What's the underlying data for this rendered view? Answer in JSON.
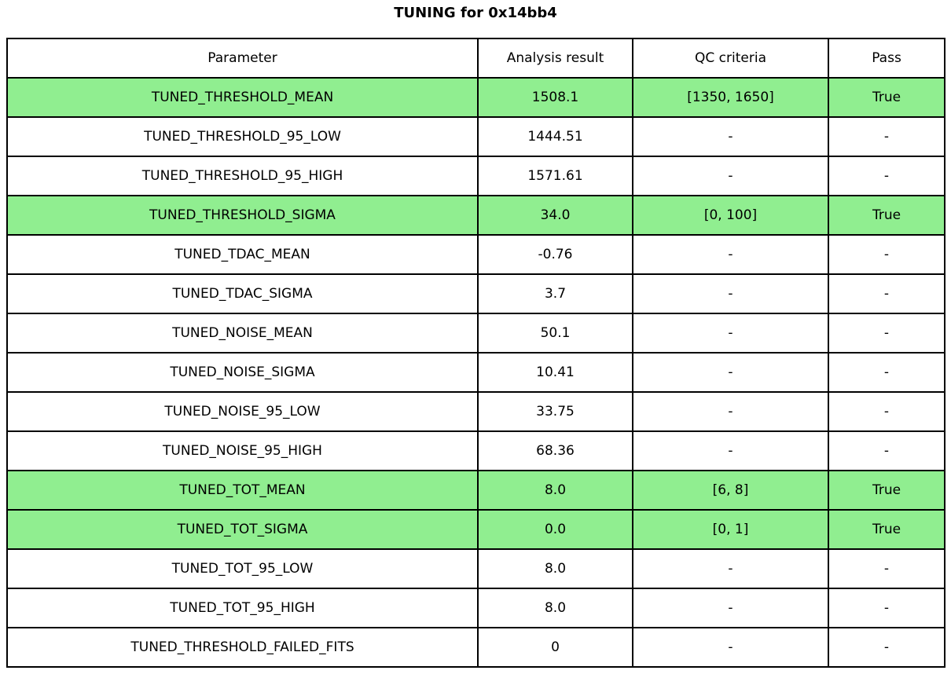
{
  "chart_data": {
    "type": "table",
    "title": "TUNING for 0x14bb4",
    "columns": [
      "Parameter",
      "Analysis result",
      "QC criteria",
      "Pass"
    ],
    "rows": [
      {
        "parameter": "TUNED_THRESHOLD_MEAN",
        "analysis_result": "1508.1",
        "qc_criteria": "[1350, 1650]",
        "pass": "True",
        "highlight": true
      },
      {
        "parameter": "TUNED_THRESHOLD_95_LOW",
        "analysis_result": "1444.51",
        "qc_criteria": "-",
        "pass": "-",
        "highlight": false
      },
      {
        "parameter": "TUNED_THRESHOLD_95_HIGH",
        "analysis_result": "1571.61",
        "qc_criteria": "-",
        "pass": "-",
        "highlight": false
      },
      {
        "parameter": "TUNED_THRESHOLD_SIGMA",
        "analysis_result": "34.0",
        "qc_criteria": "[0, 100]",
        "pass": "True",
        "highlight": true
      },
      {
        "parameter": "TUNED_TDAC_MEAN",
        "analysis_result": "-0.76",
        "qc_criteria": "-",
        "pass": "-",
        "highlight": false
      },
      {
        "parameter": "TUNED_TDAC_SIGMA",
        "analysis_result": "3.7",
        "qc_criteria": "-",
        "pass": "-",
        "highlight": false
      },
      {
        "parameter": "TUNED_NOISE_MEAN",
        "analysis_result": "50.1",
        "qc_criteria": "-",
        "pass": "-",
        "highlight": false
      },
      {
        "parameter": "TUNED_NOISE_SIGMA",
        "analysis_result": "10.41",
        "qc_criteria": "-",
        "pass": "-",
        "highlight": false
      },
      {
        "parameter": "TUNED_NOISE_95_LOW",
        "analysis_result": "33.75",
        "qc_criteria": "-",
        "pass": "-",
        "highlight": false
      },
      {
        "parameter": "TUNED_NOISE_95_HIGH",
        "analysis_result": "68.36",
        "qc_criteria": "-",
        "pass": "-",
        "highlight": false
      },
      {
        "parameter": "TUNED_TOT_MEAN",
        "analysis_result": "8.0",
        "qc_criteria": "[6, 8]",
        "pass": "True",
        "highlight": true
      },
      {
        "parameter": "TUNED_TOT_SIGMA",
        "analysis_result": "0.0",
        "qc_criteria": "[0, 1]",
        "pass": "True",
        "highlight": true
      },
      {
        "parameter": "TUNED_TOT_95_LOW",
        "analysis_result": "8.0",
        "qc_criteria": "-",
        "pass": "-",
        "highlight": false
      },
      {
        "parameter": "TUNED_TOT_95_HIGH",
        "analysis_result": "8.0",
        "qc_criteria": "-",
        "pass": "-",
        "highlight": false
      },
      {
        "parameter": "TUNED_THRESHOLD_FAILED_FITS",
        "analysis_result": "0",
        "qc_criteria": "-",
        "pass": "-",
        "highlight": false
      }
    ],
    "colors": {
      "highlight_green": "#90ee90",
      "row_default": "#ffffff",
      "border": "#000000",
      "text": "#000000"
    },
    "layout_hints": {
      "grid": "on",
      "header_row": true,
      "highlighted_rows_meaning": "rows with QC criteria that passed"
    }
  }
}
